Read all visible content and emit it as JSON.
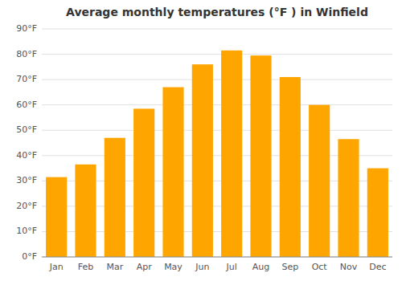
{
  "chart_data": {
    "type": "bar",
    "title": "Average monthly temperatures (°F ) in Winfield",
    "categories": [
      "Jan",
      "Feb",
      "Mar",
      "Apr",
      "May",
      "Jun",
      "Jul",
      "Aug",
      "Sep",
      "Oct",
      "Nov",
      "Dec"
    ],
    "values": [
      31.5,
      36.5,
      47,
      58.5,
      67,
      76,
      81.5,
      79.5,
      71,
      60,
      46.5,
      35
    ],
    "color": "#FFA500",
    "ylim": [
      0,
      90
    ],
    "yticks": [
      {
        "value": 0,
        "label": "0°F"
      },
      {
        "value": 10,
        "label": "10°F"
      },
      {
        "value": 20,
        "label": "20°F"
      },
      {
        "value": 30,
        "label": "30°F"
      },
      {
        "value": 40,
        "label": "40°F"
      },
      {
        "value": 50,
        "label": "50°F"
      },
      {
        "value": 60,
        "label": "60°F"
      },
      {
        "value": 70,
        "label": "70°F"
      },
      {
        "value": 80,
        "label": "80°F"
      },
      {
        "value": 90,
        "label": "90°F"
      }
    ],
    "grid": true
  }
}
